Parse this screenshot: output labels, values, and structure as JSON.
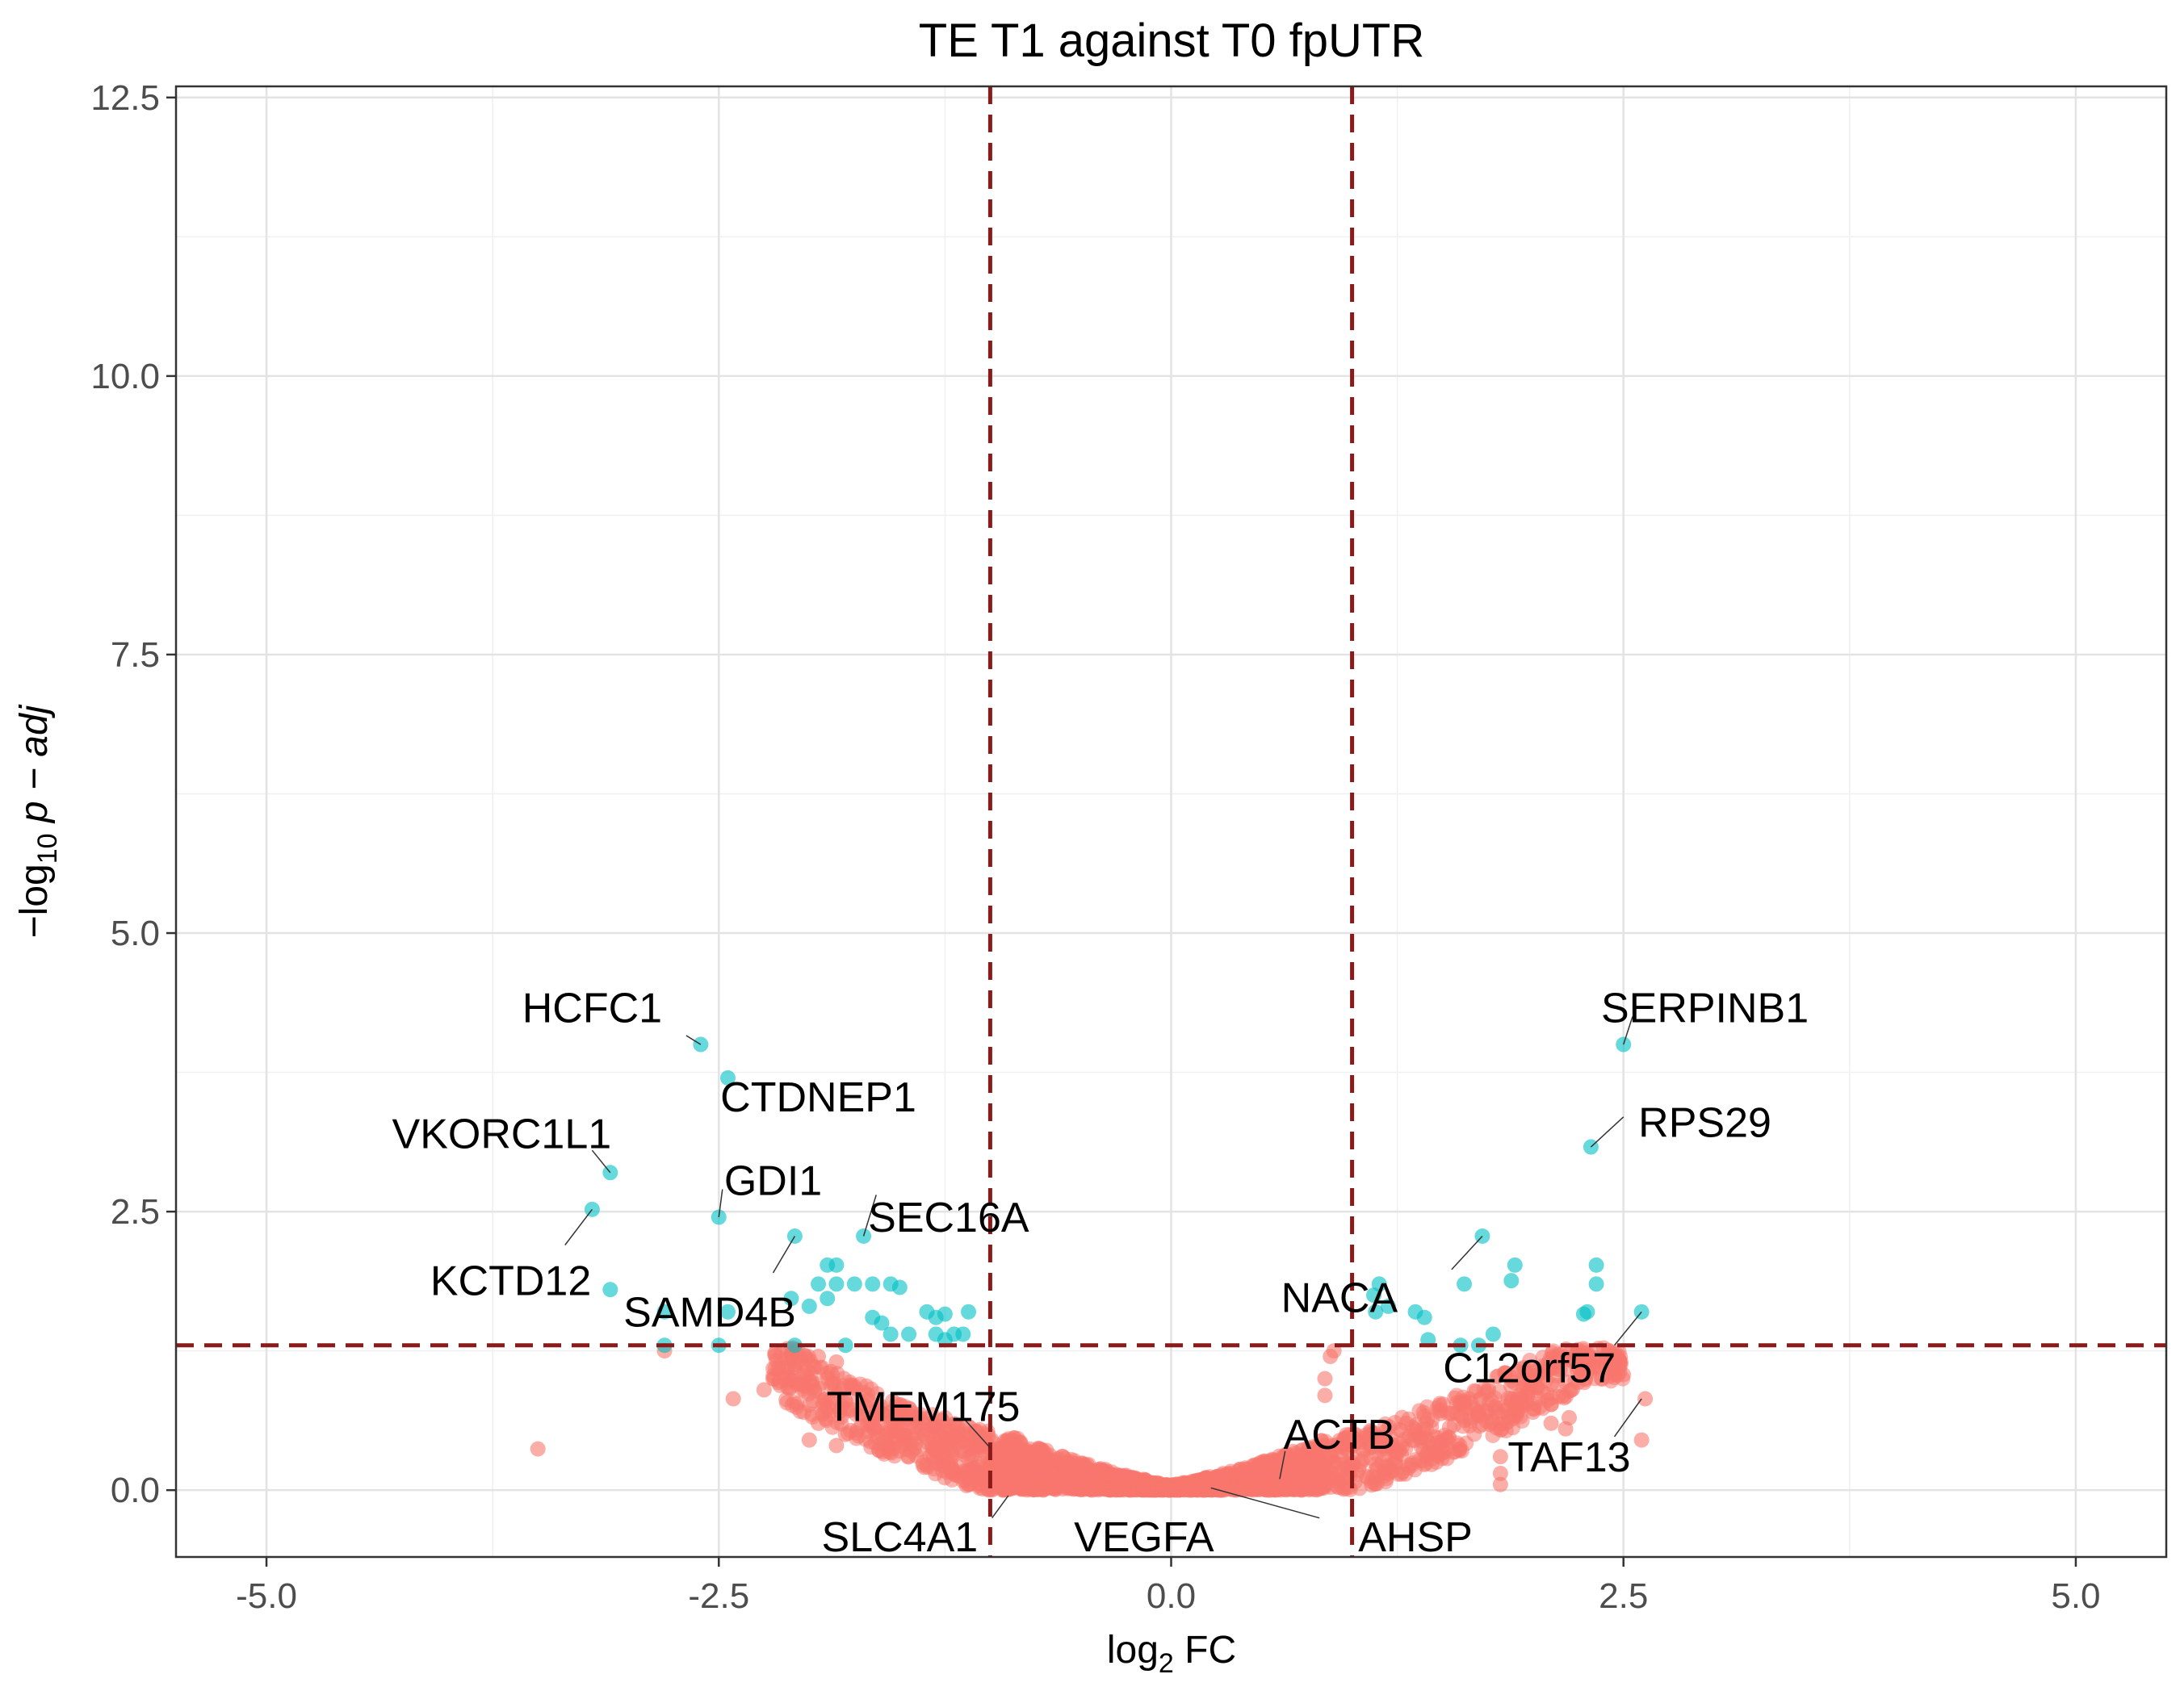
{
  "chart_data": {
    "type": "scatter",
    "title": "TE T1 against T0 fpUTR",
    "xlabel": "log",
    "xlabel_sub": "2",
    "xlabel_rest": " FC",
    "ylabel_prefix": "−log",
    "ylabel_sub": "10",
    "ylabel_rest": " p − adj",
    "xlim": [
      -5.5,
      5.5
    ],
    "ylim": [
      -0.6,
      12.6
    ],
    "x_major_ticks": [
      -5.0,
      -2.5,
      0.0,
      2.5,
      5.0
    ],
    "x_tick_labels": [
      "-5.0",
      "-2.5",
      "0.0",
      "2.5",
      "5.0"
    ],
    "x_minor_ticks": [
      -3.75,
      -1.25,
      1.25,
      3.75
    ],
    "y_major_ticks": [
      0.0,
      2.5,
      5.0,
      7.5,
      10.0,
      12.5
    ],
    "y_tick_labels": [
      "0.0",
      "2.5",
      "5.0",
      "7.5",
      "10.0",
      "12.5"
    ],
    "y_minor_ticks": [
      1.25,
      3.75,
      6.25,
      8.75,
      11.25
    ],
    "grid": true,
    "thresholds": {
      "fc": [
        -1,
        1
      ],
      "padj": 1.3,
      "color": "#8b1a1a"
    },
    "colors": {
      "significant": "#00bfc4",
      "not_significant": "#f8766d"
    },
    "significant_points": [
      {
        "x": -2.6,
        "y": 4.0
      },
      {
        "x": -2.45,
        "y": 3.7
      },
      {
        "x": -3.1,
        "y": 2.85
      },
      {
        "x": -3.2,
        "y": 2.52
      },
      {
        "x": -2.5,
        "y": 2.45
      },
      {
        "x": -2.08,
        "y": 2.28
      },
      {
        "x": -1.7,
        "y": 2.28
      },
      {
        "x": -1.9,
        "y": 2.02
      },
      {
        "x": -1.85,
        "y": 2.02
      },
      {
        "x": -1.95,
        "y": 1.85
      },
      {
        "x": -1.85,
        "y": 1.85
      },
      {
        "x": -1.75,
        "y": 1.85
      },
      {
        "x": -1.65,
        "y": 1.85
      },
      {
        "x": -1.55,
        "y": 1.85
      },
      {
        "x": -1.5,
        "y": 1.82
      },
      {
        "x": -2.1,
        "y": 1.72
      },
      {
        "x": -1.9,
        "y": 1.72
      },
      {
        "x": -2.0,
        "y": 1.65
      },
      {
        "x": -3.1,
        "y": 1.8
      },
      {
        "x": -2.8,
        "y": 1.6
      },
      {
        "x": -2.45,
        "y": 1.6
      },
      {
        "x": -1.65,
        "y": 1.55
      },
      {
        "x": -1.6,
        "y": 1.5
      },
      {
        "x": -1.55,
        "y": 1.4
      },
      {
        "x": -1.45,
        "y": 1.4
      },
      {
        "x": -1.35,
        "y": 1.6
      },
      {
        "x": -1.3,
        "y": 1.55
      },
      {
        "x": -1.25,
        "y": 1.58
      },
      {
        "x": -1.2,
        "y": 1.4
      },
      {
        "x": -1.12,
        "y": 1.6
      },
      {
        "x": -1.3,
        "y": 1.4
      },
      {
        "x": -1.25,
        "y": 1.35
      },
      {
        "x": -1.15,
        "y": 1.4
      },
      {
        "x": -2.8,
        "y": 1.3
      },
      {
        "x": -2.5,
        "y": 1.3
      },
      {
        "x": -2.08,
        "y": 1.3
      },
      {
        "x": -1.8,
        "y": 1.3
      },
      {
        "x": 2.5,
        "y": 4.0
      },
      {
        "x": 2.32,
        "y": 3.08
      },
      {
        "x": 1.72,
        "y": 2.28
      },
      {
        "x": 1.9,
        "y": 2.02
      },
      {
        "x": 2.35,
        "y": 2.02
      },
      {
        "x": 1.88,
        "y": 1.88
      },
      {
        "x": 2.35,
        "y": 1.85
      },
      {
        "x": 1.62,
        "y": 1.85
      },
      {
        "x": 1.15,
        "y": 1.85
      },
      {
        "x": 1.12,
        "y": 1.75
      },
      {
        "x": 1.2,
        "y": 1.65
      },
      {
        "x": 1.35,
        "y": 1.6
      },
      {
        "x": 1.4,
        "y": 1.55
      },
      {
        "x": 1.13,
        "y": 1.6
      },
      {
        "x": 2.3,
        "y": 1.6
      },
      {
        "x": 2.28,
        "y": 1.58
      },
      {
        "x": 2.6,
        "y": 1.6
      },
      {
        "x": 1.78,
        "y": 1.4
      },
      {
        "x": 1.42,
        "y": 1.35
      },
      {
        "x": 1.6,
        "y": 1.3
      },
      {
        "x": 1.7,
        "y": 1.3
      }
    ],
    "scattered_nonsig_points": [
      {
        "x": -3.5,
        "y": 0.37
      },
      {
        "x": -2.8,
        "y": 1.25
      },
      {
        "x": -2.42,
        "y": 0.82
      },
      {
        "x": -2.25,
        "y": 0.9
      },
      {
        "x": -2.2,
        "y": 1.0
      },
      {
        "x": -2.15,
        "y": 1.1
      },
      {
        "x": -2.1,
        "y": 1.2
      },
      {
        "x": -1.95,
        "y": 1.2
      },
      {
        "x": -1.85,
        "y": 1.15
      },
      {
        "x": -1.9,
        "y": 1.05
      },
      {
        "x": -1.95,
        "y": 0.6
      },
      {
        "x": -2.0,
        "y": 0.45
      },
      {
        "x": -1.8,
        "y": 0.5
      },
      {
        "x": -1.85,
        "y": 0.4
      },
      {
        "x": 2.45,
        "y": 1.05
      },
      {
        "x": 2.42,
        "y": 1.25
      },
      {
        "x": 2.62,
        "y": 0.82
      },
      {
        "x": 2.6,
        "y": 0.45
      },
      {
        "x": 2.18,
        "y": 0.55
      },
      {
        "x": 2.1,
        "y": 0.95
      },
      {
        "x": 2.05,
        "y": 1.05
      },
      {
        "x": 1.95,
        "y": 1.1
      },
      {
        "x": 1.85,
        "y": 1.05
      },
      {
        "x": 2.2,
        "y": 0.65
      },
      {
        "x": 2.1,
        "y": 0.6
      },
      {
        "x": 2.0,
        "y": 0.7
      },
      {
        "x": 1.9,
        "y": 0.75
      },
      {
        "x": 1.82,
        "y": 0.05
      },
      {
        "x": 1.82,
        "y": 0.15
      },
      {
        "x": 1.82,
        "y": 0.3
      },
      {
        "x": 0.85,
        "y": 1.0
      },
      {
        "x": 0.88,
        "y": 1.2
      },
      {
        "x": 0.9,
        "y": 1.25
      },
      {
        "x": 0.85,
        "y": 0.85
      }
    ],
    "cloud": {
      "description_free": true,
      "count": 2600,
      "x_range": [
        -2.2,
        2.6
      ],
      "curvature": 0.5,
      "spread": 0.55,
      "y_cap": 1.28
    },
    "annotations": [
      {
        "label": "HCFC1",
        "x": -3.2,
        "y": 4.33,
        "px": -2.6,
        "py": 4.0,
        "lx": -2.68,
        "ly": 4.08
      },
      {
        "label": "CTDNEP1",
        "x": -1.95,
        "y": 3.53,
        "px": -2.45,
        "py": 3.7,
        "lx": null,
        "ly": null
      },
      {
        "label": "VKORC1L1",
        "x": -3.7,
        "y": 3.2,
        "px": -3.1,
        "py": 2.85,
        "lx": -3.2,
        "ly": 3.05
      },
      {
        "label": "GDI1",
        "x": -2.2,
        "y": 2.78,
        "px": -2.5,
        "py": 2.45,
        "lx": -2.48,
        "ly": 2.7
      },
      {
        "label": "SEC16A",
        "x": -1.23,
        "y": 2.45,
        "px": -1.7,
        "py": 2.28,
        "lx": -1.63,
        "ly": 2.65
      },
      {
        "label": "KCTD12",
        "x": -3.65,
        "y": 1.88,
        "px": -3.2,
        "py": 2.52,
        "lx": -3.35,
        "ly": 2.2
      },
      {
        "label": "SAMD4B",
        "x": -2.55,
        "y": 1.6,
        "px": -2.08,
        "py": 2.28,
        "lx": -2.2,
        "ly": 1.95
      },
      {
        "label": "TMEM175",
        "x": -1.37,
        "y": 0.75,
        "px": -1.0,
        "py": 0.38,
        "lx": -1.15,
        "ly": 0.65
      },
      {
        "label": "SLC4A1",
        "x": -1.5,
        "y": -0.42,
        "px": -0.9,
        "py": -0.05,
        "lx": -0.99,
        "ly": -0.25
      },
      {
        "label": "VEGFA",
        "x": -0.15,
        "y": -0.42,
        "px": 0.1,
        "py": 0.04,
        "lx": null,
        "ly": null
      },
      {
        "label": "SERPINB1",
        "x": 2.95,
        "y": 4.33,
        "px": 2.5,
        "py": 4.0,
        "lx": 2.55,
        "ly": 4.25
      },
      {
        "label": "RPS29",
        "x": 2.95,
        "y": 3.3,
        "px": 2.32,
        "py": 3.08,
        "lx": 2.5,
        "ly": 3.35
      },
      {
        "label": "NACA",
        "x": 0.93,
        "y": 1.73,
        "px": 1.72,
        "py": 2.28,
        "lx": 1.55,
        "ly": 1.98
      },
      {
        "label": "C12orf57",
        "x": 1.98,
        "y": 1.1,
        "px": 2.6,
        "py": 1.6,
        "lx": 2.45,
        "ly": 1.3
      },
      {
        "label": "ACTB",
        "x": 0.93,
        "y": 0.5,
        "px": 0.6,
        "py": 0.1,
        "lx": 0.63,
        "ly": 0.35
      },
      {
        "label": "AHSP",
        "x": 1.35,
        "y": -0.42,
        "px": 0.22,
        "py": 0.02,
        "lx": 0.82,
        "ly": -0.25
      },
      {
        "label": "TAF13",
        "x": 2.2,
        "y": 0.3,
        "px": 2.6,
        "py": 0.82,
        "lx": 2.45,
        "ly": 0.48
      }
    ]
  }
}
